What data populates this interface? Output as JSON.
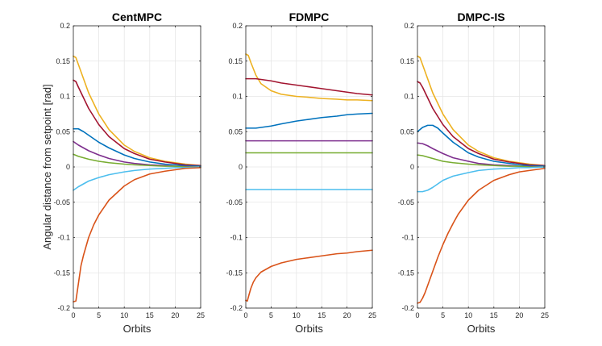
{
  "figure": {
    "ylabel": "Angular distance from setpoint [rad]"
  },
  "colors": {
    "blue": "#0072BD",
    "orange": "#D95319",
    "yellow": "#EDB120",
    "purple": "#7E2F8E",
    "green": "#77AC30",
    "lightblue": "#4DBEEE",
    "darkred": "#A2142F"
  },
  "chart_data": [
    {
      "type": "line",
      "title": "CentMPC",
      "xlabel": "Orbits",
      "ylabel": "Angular distance from setpoint [rad]",
      "xlim": [
        0,
        25
      ],
      "ylim": [
        -0.2,
        0.2
      ],
      "xticks": [
        "0",
        "5",
        "10",
        "15",
        "20",
        "25"
      ],
      "yticks": [
        "-0.2",
        "-0.15",
        "-0.1",
        "-0.05",
        "0",
        "0.05",
        "0.1",
        "0.15",
        "0.2"
      ],
      "grid": true,
      "series": [
        {
          "name": "yellow",
          "color_key": "yellow",
          "x": [
            0,
            0.5,
            1,
            2,
            3,
            5,
            7,
            10,
            12,
            15,
            18,
            20,
            22,
            25
          ],
          "y": [
            0.157,
            0.155,
            0.145,
            0.125,
            0.105,
            0.075,
            0.053,
            0.031,
            0.022,
            0.013,
            0.008,
            0.006,
            0.004,
            0.002
          ]
        },
        {
          "name": "darkred",
          "color_key": "darkred",
          "x": [
            0,
            0.5,
            1,
            2,
            3,
            5,
            7,
            10,
            12,
            15,
            18,
            20,
            22,
            25
          ],
          "y": [
            0.123,
            0.121,
            0.113,
            0.098,
            0.083,
            0.06,
            0.043,
            0.026,
            0.019,
            0.011,
            0.007,
            0.005,
            0.003,
            0.002
          ]
        },
        {
          "name": "blue",
          "color_key": "blue",
          "x": [
            0,
            1,
            2,
            3,
            5,
            7,
            10,
            12,
            15,
            18,
            20,
            22,
            25
          ],
          "y": [
            0.054,
            0.054,
            0.05,
            0.045,
            0.035,
            0.027,
            0.017,
            0.012,
            0.007,
            0.004,
            0.003,
            0.002,
            0.001
          ]
        },
        {
          "name": "purple",
          "color_key": "purple",
          "x": [
            0,
            1,
            2,
            3,
            5,
            7,
            10,
            12,
            15,
            18,
            20,
            22,
            25
          ],
          "y": [
            0.036,
            0.031,
            0.027,
            0.023,
            0.017,
            0.012,
            0.007,
            0.005,
            0.003,
            0.002,
            0.001,
            0.001,
            0.0
          ]
        },
        {
          "name": "green",
          "color_key": "green",
          "x": [
            0,
            1,
            2,
            3,
            5,
            7,
            10,
            12,
            15,
            18,
            20,
            22,
            25
          ],
          "y": [
            0.018,
            0.015,
            0.013,
            0.011,
            0.008,
            0.006,
            0.004,
            0.003,
            0.002,
            0.001,
            0.001,
            0.0,
            0.0
          ]
        },
        {
          "name": "lightblue",
          "color_key": "lightblue",
          "x": [
            0,
            1,
            2,
            3,
            5,
            7,
            10,
            12,
            15,
            18,
            20,
            22,
            25
          ],
          "y": [
            -0.033,
            -0.028,
            -0.024,
            -0.02,
            -0.015,
            -0.011,
            -0.007,
            -0.005,
            -0.003,
            -0.002,
            -0.001,
            -0.001,
            0.0
          ]
        },
        {
          "name": "orange",
          "color_key": "orange",
          "x": [
            0,
            0.5,
            1,
            1.5,
            2,
            3,
            4,
            5,
            7,
            10,
            12,
            15,
            18,
            20,
            22,
            25
          ],
          "y": [
            -0.191,
            -0.19,
            -0.165,
            -0.14,
            -0.125,
            -0.1,
            -0.082,
            -0.068,
            -0.047,
            -0.027,
            -0.018,
            -0.01,
            -0.006,
            -0.004,
            -0.002,
            -0.001
          ]
        }
      ]
    },
    {
      "type": "line",
      "title": "FDMPC",
      "xlabel": "Orbits",
      "ylabel": "",
      "xlim": [
        0,
        25
      ],
      "ylim": [
        -0.2,
        0.2
      ],
      "xticks": [
        "0",
        "5",
        "10",
        "15",
        "20",
        "25"
      ],
      "yticks": [
        "-0.2",
        "-0.15",
        "-0.1",
        "-0.05",
        "0",
        "0.05",
        "0.1",
        "0.15",
        "0.2"
      ],
      "grid": true,
      "series": [
        {
          "name": "yellow",
          "color_key": "yellow",
          "x": [
            0,
            0.5,
            1,
            2,
            3,
            5,
            7,
            10,
            12,
            15,
            18,
            20,
            22,
            25
          ],
          "y": [
            0.16,
            0.158,
            0.148,
            0.13,
            0.118,
            0.108,
            0.103,
            0.1,
            0.099,
            0.097,
            0.096,
            0.095,
            0.095,
            0.094
          ]
        },
        {
          "name": "darkred",
          "color_key": "darkred",
          "x": [
            0,
            1,
            2,
            3,
            5,
            7,
            10,
            12,
            15,
            18,
            20,
            22,
            25
          ],
          "y": [
            0.125,
            0.125,
            0.125,
            0.124,
            0.122,
            0.119,
            0.116,
            0.114,
            0.111,
            0.108,
            0.106,
            0.104,
            0.102
          ]
        },
        {
          "name": "blue",
          "color_key": "blue",
          "x": [
            0,
            1,
            2,
            3,
            5,
            7,
            10,
            12,
            15,
            18,
            20,
            22,
            25
          ],
          "y": [
            0.055,
            0.055,
            0.055,
            0.056,
            0.058,
            0.061,
            0.065,
            0.067,
            0.07,
            0.072,
            0.074,
            0.075,
            0.076
          ]
        },
        {
          "name": "purple",
          "color_key": "purple",
          "x": [
            0,
            25
          ],
          "y": [
            0.037,
            0.037
          ]
        },
        {
          "name": "green",
          "color_key": "green",
          "x": [
            0,
            25
          ],
          "y": [
            0.02,
            0.02
          ]
        },
        {
          "name": "lightblue",
          "color_key": "lightblue",
          "x": [
            0,
            25
          ],
          "y": [
            -0.032,
            -0.032
          ]
        },
        {
          "name": "orange",
          "color_key": "orange",
          "x": [
            0,
            0.3,
            0.6,
            1,
            1.5,
            2,
            3,
            5,
            7,
            10,
            12,
            15,
            18,
            20,
            22,
            25
          ],
          "y": [
            -0.189,
            -0.19,
            -0.182,
            -0.172,
            -0.163,
            -0.157,
            -0.149,
            -0.141,
            -0.136,
            -0.131,
            -0.129,
            -0.126,
            -0.123,
            -0.122,
            -0.12,
            -0.118
          ]
        }
      ]
    },
    {
      "type": "line",
      "title": "DMPC-IS",
      "xlabel": "Orbits",
      "ylabel": "",
      "xlim": [
        0,
        25
      ],
      "ylim": [
        -0.2,
        0.2
      ],
      "xticks": [
        "0",
        "5",
        "10",
        "15",
        "20",
        "25"
      ],
      "yticks": [
        "-0.2",
        "-0.15",
        "-0.1",
        "-0.05",
        "0",
        "0.05",
        "0.1",
        "0.15",
        "0.2"
      ],
      "grid": true,
      "series": [
        {
          "name": "yellow",
          "color_key": "yellow",
          "x": [
            0,
            0.5,
            1,
            2,
            3,
            5,
            7,
            10,
            12,
            15,
            18,
            20,
            22,
            25
          ],
          "y": [
            0.157,
            0.155,
            0.145,
            0.125,
            0.105,
            0.075,
            0.053,
            0.031,
            0.022,
            0.013,
            0.008,
            0.006,
            0.004,
            0.002
          ]
        },
        {
          "name": "darkred",
          "color_key": "darkred",
          "x": [
            0,
            0.5,
            1,
            2,
            3,
            5,
            7,
            10,
            12,
            15,
            18,
            20,
            22,
            25
          ],
          "y": [
            0.121,
            0.119,
            0.113,
            0.098,
            0.083,
            0.06,
            0.043,
            0.026,
            0.019,
            0.011,
            0.007,
            0.005,
            0.003,
            0.002
          ]
        },
        {
          "name": "blue",
          "color_key": "blue",
          "x": [
            0,
            0.5,
            1,
            2,
            3,
            4,
            5,
            7,
            10,
            12,
            15,
            18,
            20,
            22,
            25
          ],
          "y": [
            0.05,
            0.053,
            0.056,
            0.059,
            0.059,
            0.055,
            0.048,
            0.035,
            0.02,
            0.014,
            0.008,
            0.005,
            0.003,
            0.002,
            0.001
          ]
        },
        {
          "name": "purple",
          "color_key": "purple",
          "x": [
            0,
            1,
            2,
            3,
            5,
            7,
            10,
            12,
            15,
            18,
            20,
            22,
            25
          ],
          "y": [
            0.034,
            0.033,
            0.03,
            0.026,
            0.019,
            0.013,
            0.008,
            0.005,
            0.003,
            0.002,
            0.001,
            0.001,
            0.0
          ]
        },
        {
          "name": "green",
          "color_key": "green",
          "x": [
            0,
            1,
            2,
            3,
            5,
            7,
            10,
            12,
            15,
            18,
            20,
            22,
            25
          ],
          "y": [
            0.017,
            0.016,
            0.014,
            0.012,
            0.008,
            0.006,
            0.004,
            0.003,
            0.002,
            0.001,
            0.001,
            0.0,
            0.0
          ]
        },
        {
          "name": "lightblue",
          "color_key": "lightblue",
          "x": [
            0,
            1,
            2,
            3,
            4,
            5,
            7,
            10,
            12,
            15,
            18,
            20,
            22,
            25
          ],
          "y": [
            -0.035,
            -0.035,
            -0.033,
            -0.029,
            -0.024,
            -0.019,
            -0.013,
            -0.008,
            -0.005,
            -0.003,
            -0.002,
            -0.001,
            -0.001,
            0.0
          ]
        },
        {
          "name": "orange",
          "color_key": "orange",
          "x": [
            0,
            0.5,
            1,
            1.5,
            2,
            3,
            4,
            5,
            6,
            7,
            8,
            10,
            12,
            15,
            18,
            20,
            22,
            25
          ],
          "y": [
            -0.193,
            -0.192,
            -0.186,
            -0.178,
            -0.168,
            -0.148,
            -0.128,
            -0.11,
            -0.094,
            -0.08,
            -0.067,
            -0.047,
            -0.033,
            -0.019,
            -0.011,
            -0.007,
            -0.005,
            -0.002
          ]
        }
      ]
    }
  ]
}
